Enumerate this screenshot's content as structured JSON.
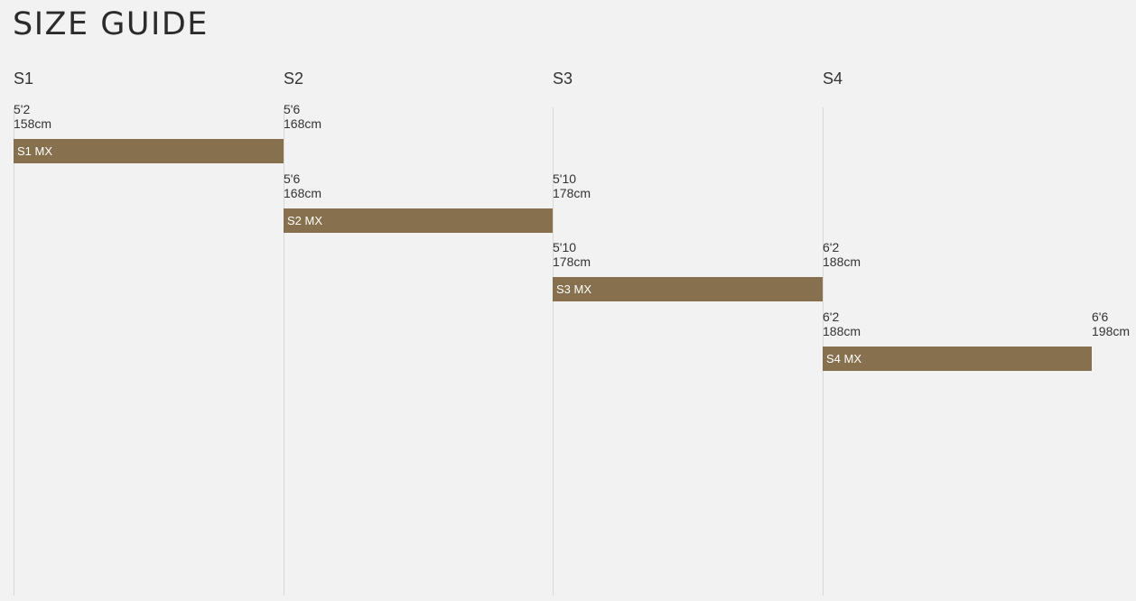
{
  "page": {
    "title": "SIZE GUIDE"
  },
  "colors": {
    "bar": "#87704d",
    "background": "#f2f2f2",
    "guide_line": "#d8d8d8"
  },
  "chart_data": {
    "type": "bar",
    "title": "SIZE GUIDE",
    "columns": [
      "S1",
      "S2",
      "S3",
      "S4"
    ],
    "bars": [
      {
        "label": "S1 MX",
        "min_label": "5'2",
        "min_cm_label": "158cm",
        "max_label": "5'6",
        "max_cm_label": "168cm",
        "min_cm": 158,
        "max_cm": 168
      },
      {
        "label": "S2 MX",
        "min_label": "5'6",
        "min_cm_label": "168cm",
        "max_label": "5'10",
        "max_cm_label": "178cm",
        "min_cm": 168,
        "max_cm": 178
      },
      {
        "label": "S3 MX",
        "min_label": "5'10",
        "min_cm_label": "178cm",
        "max_label": "6'2",
        "max_cm_label": "188cm",
        "min_cm": 178,
        "max_cm": 188
      },
      {
        "label": "S4 MX",
        "min_label": "6'2",
        "min_cm_label": "188cm",
        "max_label": "6'6",
        "max_cm_label": "198cm",
        "min_cm": 188,
        "max_cm": 198
      }
    ],
    "xlim": [
      158,
      198
    ]
  }
}
